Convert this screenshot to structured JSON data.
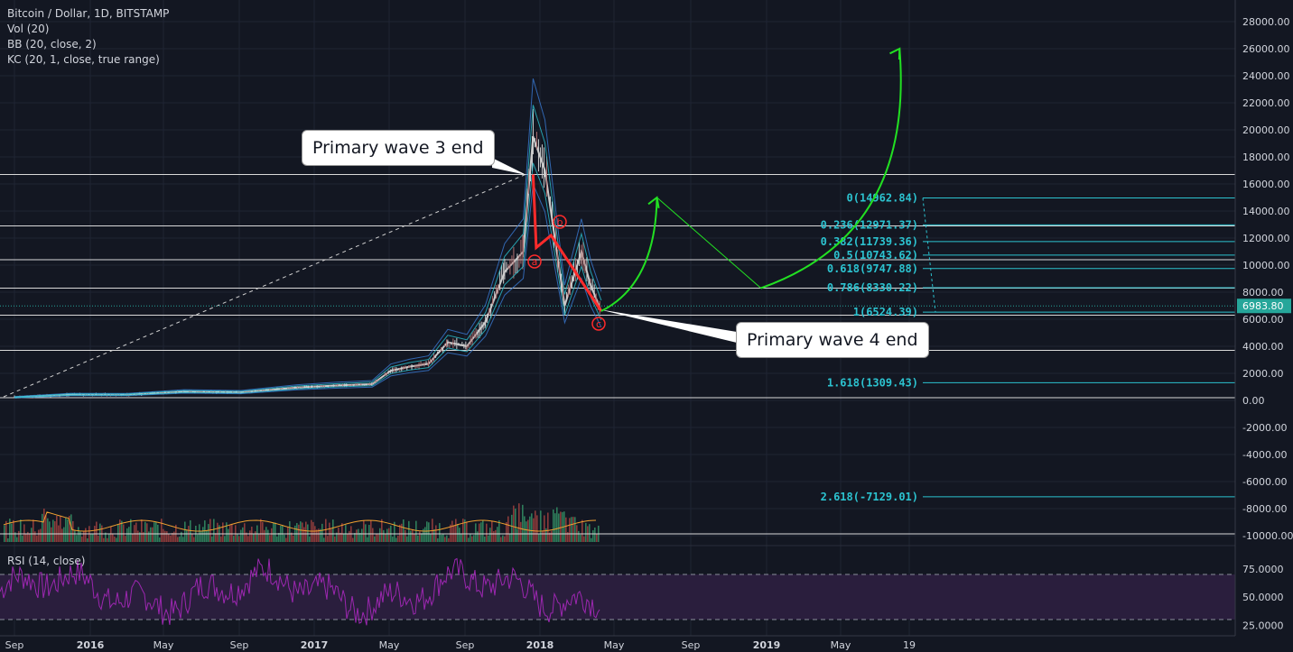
{
  "legend": {
    "title": "Bitcoin / Dollar, 1D, BITSTAMP",
    "vol": "Vol (20)",
    "bb": "BB (20, close, 2)",
    "kc": "KC (20, 1, close, true range)"
  },
  "rsi": {
    "label": "RSI (14, close)",
    "ticks": [
      "75.0000",
      "50.0000",
      "25.0000"
    ]
  },
  "callouts": {
    "wave3": "Primary wave 3 end",
    "wave4": "Primary wave 4 end"
  },
  "wave_labels": [
    "a",
    "b",
    "c"
  ],
  "colors": {
    "background": "#131722",
    "fib": "#2cc3d0",
    "wave": "#ff2b2b",
    "projection": "#22e022",
    "price_badge": "#26a69a",
    "rsi": "#9c27b0",
    "horizontal": "#d9d9d9"
  },
  "chart_data": {
    "type": "line",
    "title": "Bitcoin / Dollar, 1D, BITSTAMP",
    "y_ticks": [
      "28000.00",
      "26000.00",
      "24000.00",
      "22000.00",
      "20000.00",
      "18000.00",
      "16000.00",
      "14000.00",
      "12000.00",
      "10000.00",
      "8000.00",
      "6000.00",
      "4000.00",
      "2000.00",
      "0.00",
      "-2000.00",
      "-4000.00",
      "-6000.00",
      "-8000.00",
      "-10000.00"
    ],
    "ylim": [
      -10000,
      28000
    ],
    "x_ticks": [
      "Sep",
      "2016",
      "May",
      "Sep",
      "2017",
      "May",
      "Sep",
      "2018",
      "May",
      "Sep",
      "2019",
      "May",
      "19"
    ],
    "last_price": "6983.80",
    "horizontal_levels": [
      16700,
      12900,
      10400,
      8300,
      6300,
      3700,
      200
    ],
    "fib_levels": [
      {
        "label": "0(14962.84)",
        "value": 14962.84
      },
      {
        "label": "0.236(12971.37)",
        "value": 12971.37
      },
      {
        "label": "0.382(11739.36)",
        "value": 11739.36
      },
      {
        "label": "0.5(10743.62)",
        "value": 10743.62
      },
      {
        "label": "0.618(9747.88)",
        "value": 9747.88
      },
      {
        "label": "0.786(8330.22)",
        "value": 8330.22
      },
      {
        "label": "1(6524.39)",
        "value": 6524.39
      },
      {
        "label": "1.618(1309.43)",
        "value": 1309.43
      },
      {
        "label": "2.618(-7129.01)",
        "value": -7129.01
      }
    ],
    "price_series": {
      "name": "BTC/USD",
      "x": [
        "2015-09",
        "2015-12",
        "2016-03",
        "2016-06",
        "2016-09",
        "2016-12",
        "2017-02",
        "2017-04",
        "2017-05",
        "2017-06",
        "2017-07",
        "2017-08",
        "2017-09",
        "2017-10",
        "2017-11",
        "2017-12-01",
        "2017-12-17",
        "2018-01-05",
        "2018-02-06",
        "2018-03-05",
        "2018-03-20",
        "2018-04-06"
      ],
      "y": [
        230,
        430,
        420,
        650,
        600,
        950,
        1100,
        1200,
        2200,
        2500,
        2700,
        4300,
        4000,
        5800,
        9500,
        11000,
        19500,
        17000,
        7000,
        11000,
        8500,
        6600
      ]
    },
    "wave_path": {
      "name": "wave",
      "x": [
        "2017-12-17",
        "2017-12-22",
        "2018-01-15",
        "2018-04-06"
      ],
      "y": [
        16700,
        11300,
        12200,
        6600
      ]
    },
    "projection": {
      "x": [
        "2018-04-06",
        "2018-07-05",
        "2018-12-20",
        "2019-08-01"
      ],
      "y": [
        6600,
        15000,
        8300,
        26000
      ]
    },
    "rsi_series": {
      "ylim": [
        20,
        85
      ],
      "guides": [
        70,
        30
      ]
    }
  }
}
